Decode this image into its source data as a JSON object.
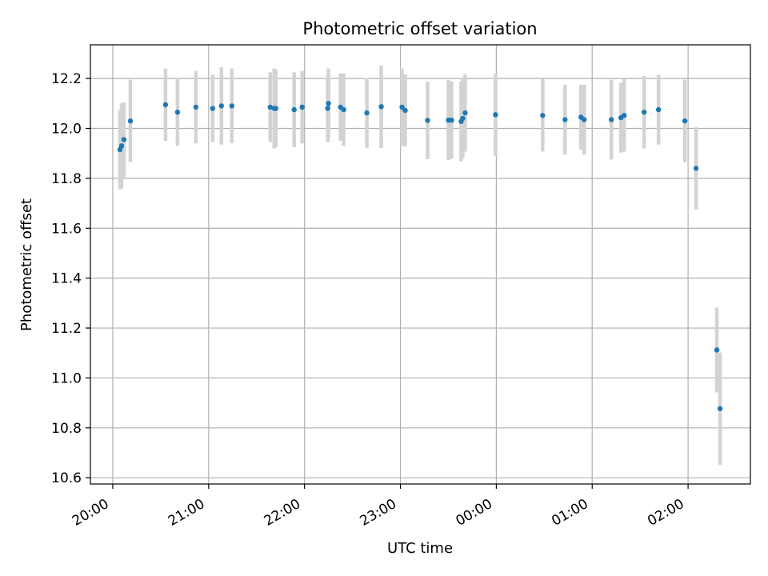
{
  "chart_data": {
    "type": "scatter",
    "title": "Photometric offset variation",
    "xlabel": "UTC time",
    "ylabel": "Photometric offset",
    "x_is_time": true,
    "xlim": [
      "19:46",
      "02:39"
    ],
    "ylim": [
      10.575,
      12.335
    ],
    "x_ticks": [
      "20:00",
      "21:00",
      "22:00",
      "23:00",
      "00:00",
      "01:00",
      "02:00"
    ],
    "y_ticks": [
      "10.6",
      "10.8",
      "11.0",
      "11.2",
      "11.4",
      "11.6",
      "11.8",
      "12.0",
      "12.2"
    ],
    "grid": true,
    "legend": "none",
    "colors": {
      "points": "#1f77b4",
      "errorbars": "#d3d3d3",
      "grid": "#b0b0b0"
    },
    "series": [
      {
        "points": [
          {
            "x": "20:04:30",
            "y": 11.915,
            "err": 0.16
          },
          {
            "x": "20:05:30",
            "y": 11.93,
            "err": 0.17
          },
          {
            "x": "20:07:00",
            "y": 11.955,
            "err": 0.15
          },
          {
            "x": "20:11:00",
            "y": 12.03,
            "err": 0.165
          },
          {
            "x": "20:33:00",
            "y": 12.095,
            "err": 0.145
          },
          {
            "x": "20:40:30",
            "y": 12.065,
            "err": 0.135
          },
          {
            "x": "20:52:00",
            "y": 12.085,
            "err": 0.145
          },
          {
            "x": "21:02:30",
            "y": 12.08,
            "err": 0.135
          },
          {
            "x": "21:08:00",
            "y": 12.09,
            "err": 0.155
          },
          {
            "x": "21:14:30",
            "y": 12.09,
            "err": 0.15
          },
          {
            "x": "21:38:30",
            "y": 12.085,
            "err": 0.14
          },
          {
            "x": "21:41:00",
            "y": 12.08,
            "err": 0.16
          },
          {
            "x": "21:42:00",
            "y": 12.08,
            "err": 0.155
          },
          {
            "x": "21:53:30",
            "y": 12.075,
            "err": 0.15
          },
          {
            "x": "21:58:30",
            "y": 12.085,
            "err": 0.145
          },
          {
            "x": "22:14:30",
            "y": 12.08,
            "err": 0.135
          },
          {
            "x": "22:15:00",
            "y": 12.1,
            "err": 0.14
          },
          {
            "x": "22:22:30",
            "y": 12.085,
            "err": 0.135
          },
          {
            "x": "22:24:30",
            "y": 12.075,
            "err": 0.145
          },
          {
            "x": "22:39:00",
            "y": 12.062,
            "err": 0.14
          },
          {
            "x": "22:48:00",
            "y": 12.087,
            "err": 0.165
          },
          {
            "x": "23:01:00",
            "y": 12.085,
            "err": 0.155
          },
          {
            "x": "23:03:00",
            "y": 12.072,
            "err": 0.145
          },
          {
            "x": "23:17:00",
            "y": 12.032,
            "err": 0.155
          },
          {
            "x": "23:30:00",
            "y": 12.033,
            "err": 0.16
          },
          {
            "x": "23:32:00",
            "y": 12.033,
            "err": 0.155
          },
          {
            "x": "23:38:00",
            "y": 12.028,
            "err": 0.16
          },
          {
            "x": "23:39:00",
            "y": 12.04,
            "err": 0.16
          },
          {
            "x": "23:40:30",
            "y": 12.062,
            "err": 0.155
          },
          {
            "x": "23:59:30",
            "y": 12.055,
            "err": 0.165
          },
          {
            "x": "00:29:00",
            "y": 12.052,
            "err": 0.145
          },
          {
            "x": "00:43:00",
            "y": 12.035,
            "err": 0.14
          },
          {
            "x": "00:53:00",
            "y": 12.045,
            "err": 0.13
          },
          {
            "x": "00:55:00",
            "y": 12.035,
            "err": 0.14
          },
          {
            "x": "01:12:00",
            "y": 12.035,
            "err": 0.16
          },
          {
            "x": "01:18:00",
            "y": 12.043,
            "err": 0.14
          },
          {
            "x": "01:20:00",
            "y": 12.052,
            "err": 0.145
          },
          {
            "x": "01:32:30",
            "y": 12.065,
            "err": 0.145
          },
          {
            "x": "01:41:30",
            "y": 12.075,
            "err": 0.14
          },
          {
            "x": "01:58:00",
            "y": 12.03,
            "err": 0.165
          },
          {
            "x": "02:05:00",
            "y": 11.84,
            "err": 0.165
          },
          {
            "x": "02:18:00",
            "y": 11.112,
            "err": 0.17
          },
          {
            "x": "02:20:00",
            "y": 10.877,
            "err": 0.225
          }
        ]
      }
    ]
  }
}
